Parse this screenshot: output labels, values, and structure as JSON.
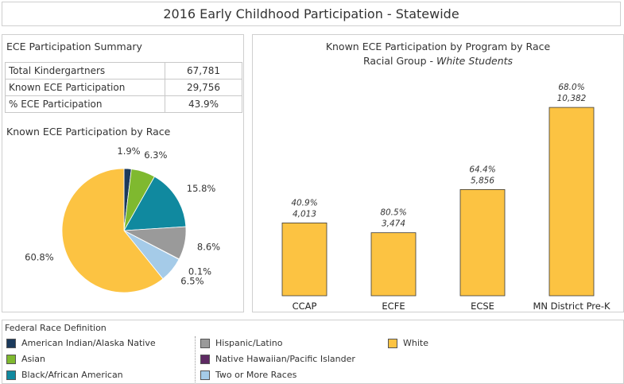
{
  "page": {
    "title": "2016 Early Childhood Participation - Statewide"
  },
  "summary": {
    "title": "ECE Participation Summary",
    "rows": [
      {
        "label": "Total Kindergartners",
        "value": "67,781"
      },
      {
        "label": "Known ECE Participation",
        "value": "29,756"
      },
      {
        "label": "% ECE Participation",
        "value": "43.9%"
      }
    ]
  },
  "chart_data": [
    {
      "type": "pie",
      "title": "Known ECE Participation by Race",
      "start_angle_deg": 0,
      "slices": [
        {
          "name": "American Indian/Alaska Native",
          "value": 1.9,
          "label": "1.9%",
          "color": "#1b3a5c"
        },
        {
          "name": "Asian",
          "value": 6.3,
          "label": "6.3%",
          "color": "#7fb92f"
        },
        {
          "name": "Black/African American",
          "value": 15.8,
          "label": "15.8%",
          "color": "#10899f"
        },
        {
          "name": "Hispanic/Latino",
          "value": 8.6,
          "label": "8.6%",
          "color": "#9a9a9a"
        },
        {
          "name": "Native Hawaiian/Pacific Islander",
          "value": 0.1,
          "label": "0.1%",
          "color": "#5e2a63"
        },
        {
          "name": "Two or More Races",
          "value": 6.5,
          "label": "6.5%",
          "color": "#a5cbe8"
        },
        {
          "name": "White",
          "value": 60.8,
          "label": "60.8%",
          "color": "#fcc342"
        }
      ]
    },
    {
      "type": "bar",
      "title": "Known ECE Participation by Program by Race",
      "subtitle_prefix": "Racial Group - ",
      "subtitle_group": "White Students",
      "categories": [
        "CCAP",
        "ECFE",
        "ECSE",
        "MN District Pre-K"
      ],
      "values": [
        4013,
        3474,
        5856,
        10382
      ],
      "value_labels": [
        "4,013",
        "3,474",
        "5,856",
        "10,382"
      ],
      "pct_labels": [
        "40.9%",
        "80.5%",
        "64.4%",
        "68.0%"
      ],
      "ylim": [
        0,
        11000
      ],
      "color": "#fcc342",
      "grid": false
    }
  ],
  "legend": {
    "title": "Federal Race Definition",
    "items": [
      {
        "label": "American Indian/Alaska Native",
        "color": "#1b3a5c"
      },
      {
        "label": "Asian",
        "color": "#7fb92f"
      },
      {
        "label": "Black/African American",
        "color": "#10899f"
      },
      {
        "label": "Hispanic/Latino",
        "color": "#9a9a9a"
      },
      {
        "label": "Native Hawaiian/Pacific Islander",
        "color": "#5e2a63"
      },
      {
        "label": "Two or More Races",
        "color": "#a5cbe8"
      },
      {
        "label": "White",
        "color": "#fcc342"
      }
    ]
  }
}
